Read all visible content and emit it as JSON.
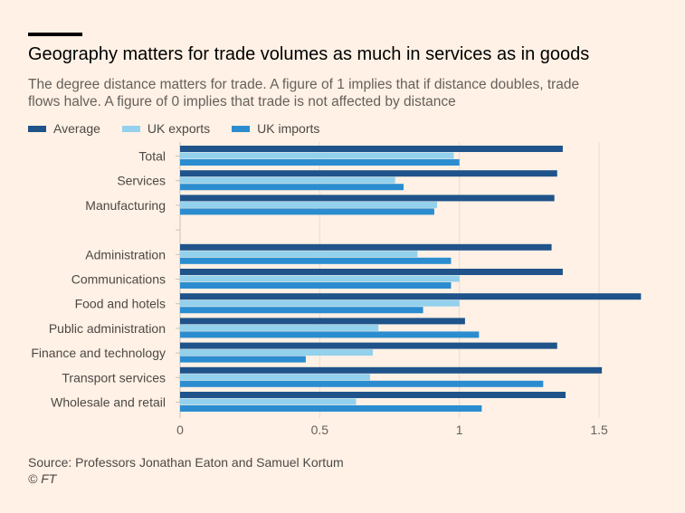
{
  "title": "Geography matters for trade volumes as much in services as in goods",
  "subtitle": "The degree distance matters for trade. A figure of 1 implies that if distance doubles, trade flows halve. A figure of 0 implies that trade is not affected by distance",
  "source": "Source: Professors Jonathan Eaton and Samuel Kortum",
  "credit": "© FT",
  "chart_data": {
    "type": "bar",
    "orientation": "horizontal",
    "categories": [
      "Total",
      "Services",
      "Manufacturing",
      "",
      "Administration",
      "Communications",
      "Food and hotels",
      "Public administration",
      "Finance and technology",
      "Transport services",
      "Wholesale and retail"
    ],
    "series": [
      {
        "name": "Average",
        "color": "#1f538a",
        "values": [
          1.37,
          1.35,
          1.34,
          null,
          1.33,
          1.37,
          1.65,
          1.02,
          1.35,
          1.51,
          1.38
        ]
      },
      {
        "name": "UK exports",
        "color": "#93d1ec",
        "values": [
          0.98,
          0.77,
          0.92,
          null,
          0.85,
          1.0,
          1.0,
          0.71,
          0.69,
          0.68,
          0.63
        ]
      },
      {
        "name": "UK imports",
        "color": "#2b8dd0",
        "values": [
          1.0,
          0.8,
          0.91,
          null,
          0.97,
          0.97,
          0.87,
          1.07,
          0.45,
          1.3,
          1.08
        ]
      }
    ],
    "xlim": [
      0,
      1.65
    ],
    "xticks": [
      0,
      0.5,
      1,
      1.5
    ],
    "xtick_labels": [
      "0",
      "0.5",
      "1",
      "1.5"
    ],
    "grid": true,
    "legend": "top-left"
  }
}
